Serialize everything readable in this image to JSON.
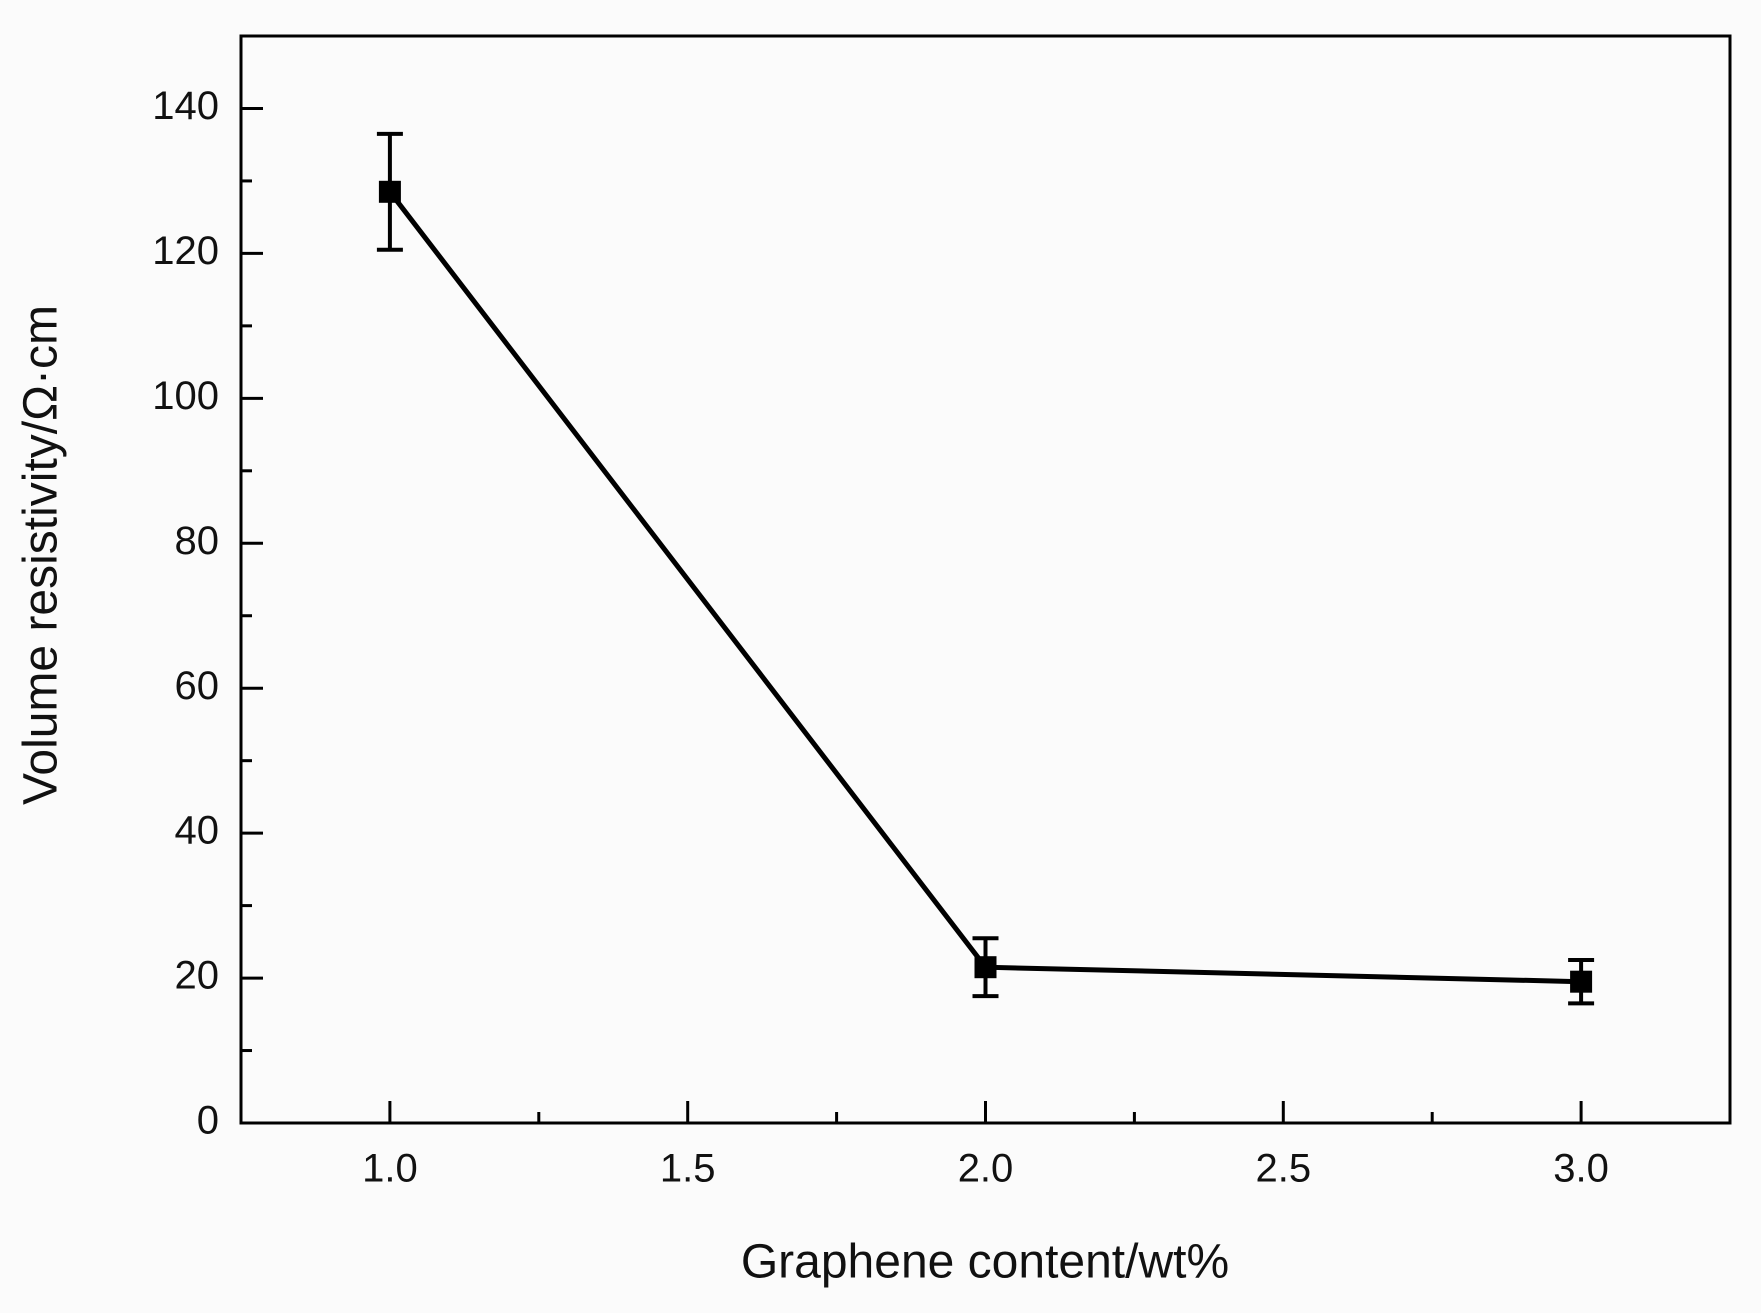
{
  "chart_data": {
    "type": "line",
    "xlabel": "Graphene content/wt%",
    "ylabel": "Volume resistivity/Ω·cm",
    "x": [
      1.0,
      2.0,
      3.0
    ],
    "series": [
      {
        "color": "#000000",
        "values": [
          128.5,
          21.5,
          19.5
        ],
        "errors": [
          8,
          4,
          3
        ]
      }
    ],
    "xlim": [
      0.75,
      3.25
    ],
    "xticks": [
      {
        "value": 1,
        "label": "1.0"
      },
      1.5,
      {
        "value": 2,
        "label": "2.0"
      },
      2.5,
      {
        "value": 3,
        "label": "3.0"
      }
    ],
    "ylim": [
      0,
      150
    ],
    "yticks": [
      0,
      20,
      40,
      60,
      80,
      100,
      120,
      140
    ]
  }
}
